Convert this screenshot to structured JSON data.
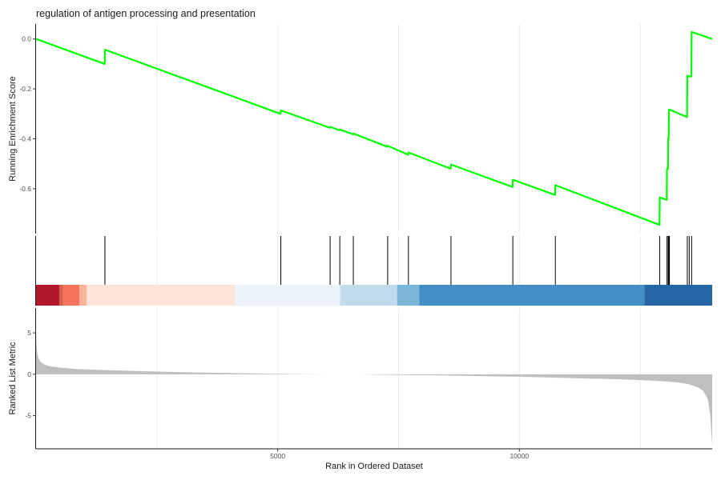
{
  "chart_data": {
    "type": "line",
    "title": "regulation of antigen processing and presentation",
    "xlabel": "Rank in Ordered Dataset",
    "xlim": [
      0,
      13990
    ],
    "x_ticks": [
      5000,
      10000
    ],
    "grid": "vertical",
    "top_panel": {
      "ylabel": "Running Enrichment Score",
      "ylim": [
        -0.78,
        0.06
      ],
      "y_ticks": [
        0.0,
        -0.2,
        -0.4,
        -0.6
      ],
      "y_tick_labels": [
        "0.0",
        "-0.2",
        "-0.4",
        "-0.6"
      ],
      "line_color": "#00ff00",
      "series": [
        {
          "x": [
            0,
            1420,
            1425,
            5060,
            5065,
            6080,
            6085,
            6280,
            6285,
            6560,
            6565,
            7270,
            7275,
            7700,
            7705,
            8580,
            8585,
            9860,
            9865,
            10740,
            10745,
            12900,
            12905,
            13050,
            13055,
            13075,
            13080,
            13090,
            13095,
            13105,
            13110,
            13470,
            13475,
            13510,
            13515,
            13560,
            13565,
            13990
          ],
          "y": [
            0.0,
            -0.1,
            -0.043,
            -0.3,
            -0.286,
            -0.356,
            -0.352,
            -0.366,
            -0.363,
            -0.382,
            -0.379,
            -0.432,
            -0.428,
            -0.464,
            -0.455,
            -0.52,
            -0.503,
            -0.593,
            -0.564,
            -0.625,
            -0.586,
            -0.745,
            -0.635,
            -0.645,
            -0.52,
            -0.52,
            -0.4,
            -0.4,
            -0.283,
            -0.283,
            -0.283,
            -0.313,
            -0.147,
            -0.15,
            -0.15,
            -0.15,
            0.028,
            0.0
          ]
        }
      ]
    },
    "hits": [
      1425,
      5065,
      6085,
      6285,
      6565,
      7275,
      7705,
      8585,
      9865,
      10745,
      12905,
      13055,
      13080,
      13095,
      13105,
      13475,
      13515,
      13565
    ],
    "color_bar": [
      {
        "from": 0,
        "to": 480,
        "color": "#b2182b"
      },
      {
        "from": 480,
        "to": 560,
        "color": "#d6604d"
      },
      {
        "from": 560,
        "to": 900,
        "color": "#f4735a"
      },
      {
        "from": 900,
        "to": 1050,
        "color": "#fcb49a"
      },
      {
        "from": 1050,
        "to": 4120,
        "color": "#fde4d8"
      },
      {
        "from": 4120,
        "to": 6290,
        "color": "#edf3fb"
      },
      {
        "from": 6290,
        "to": 7470,
        "color": "#c2dbea"
      },
      {
        "from": 7470,
        "to": 7930,
        "color": "#7ab5da"
      },
      {
        "from": 7930,
        "to": 12590,
        "color": "#438ec5"
      },
      {
        "from": 12590,
        "to": 13990,
        "color": "#2465a6"
      }
    ],
    "bottom_panel": {
      "ylabel": "Ranked List Metric",
      "ylim": [
        -9,
        8
      ],
      "y_ticks": [
        5,
        0,
        -5
      ],
      "y_tick_labels": [
        "5",
        "0",
        "-5"
      ],
      "fill_color": "#bfbfbf",
      "metric_x": [
        0,
        10,
        30,
        60,
        100,
        150,
        200,
        300,
        500,
        800,
        1200,
        2000,
        3000,
        4000,
        5000,
        6000,
        6700,
        7000,
        8000,
        9000,
        10000,
        11000,
        12000,
        12500,
        13000,
        13300,
        13500,
        13700,
        13800,
        13900,
        13950,
        13990
      ],
      "metric_y": [
        4.6,
        3.5,
        2.4,
        1.8,
        1.45,
        1.25,
        1.1,
        0.95,
        0.8,
        0.65,
        0.55,
        0.4,
        0.25,
        0.15,
        0.05,
        0.0,
        0.0,
        -0.05,
        -0.1,
        -0.2,
        -0.3,
        -0.45,
        -0.6,
        -0.7,
        -0.85,
        -1.0,
        -1.2,
        -1.6,
        -2.0,
        -3.0,
        -5.0,
        -8.6
      ]
    }
  }
}
